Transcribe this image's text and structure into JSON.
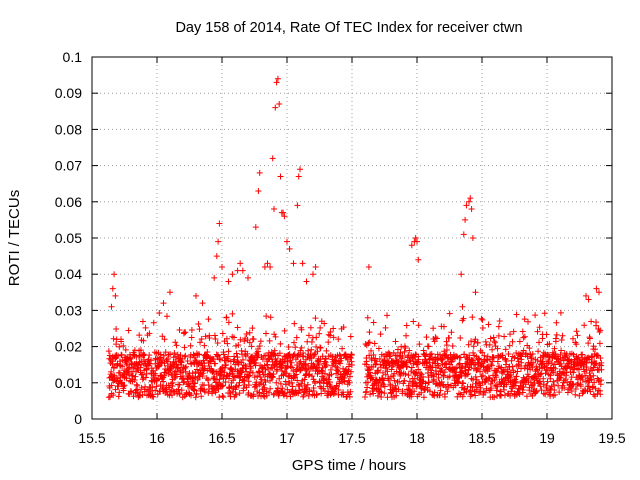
{
  "chart_data": {
    "type": "scatter",
    "title": "Day 158 of 2014, Rate Of TEC Index for receiver ctwn",
    "xlabel": "GPS time / hours",
    "ylabel": "ROTI / TECUs",
    "xlim": [
      15.5,
      19.5
    ],
    "ylim": [
      0,
      0.1
    ],
    "xticks": [
      "15.5",
      "16",
      "16.5",
      "17",
      "17.5",
      "18",
      "18.5",
      "19",
      "19.5"
    ],
    "yticks": [
      "0",
      "0.01",
      "0.02",
      "0.03",
      "0.04",
      "0.05",
      "0.06",
      "0.07",
      "0.08",
      "0.09",
      "0.1"
    ],
    "grid": true,
    "marker": "plus",
    "color": "#ff0000",
    "data_gap": [
      17.5,
      17.6
    ],
    "series": [
      {
        "name": "ROTI",
        "points": [
          [
            15.65,
            0.031
          ],
          [
            15.66,
            0.036
          ],
          [
            15.67,
            0.04
          ],
          [
            15.68,
            0.034
          ],
          [
            15.69,
            0.022
          ],
          [
            16.05,
            0.032
          ],
          [
            16.1,
            0.035
          ],
          [
            16.3,
            0.034
          ],
          [
            16.35,
            0.032
          ],
          [
            16.44,
            0.039
          ],
          [
            16.46,
            0.045
          ],
          [
            16.47,
            0.049
          ],
          [
            16.48,
            0.054
          ],
          [
            16.5,
            0.042
          ],
          [
            16.55,
            0.038
          ],
          [
            16.58,
            0.04
          ],
          [
            16.62,
            0.041
          ],
          [
            16.64,
            0.043
          ],
          [
            16.66,
            0.041
          ],
          [
            16.7,
            0.039
          ],
          [
            16.76,
            0.053
          ],
          [
            16.78,
            0.063
          ],
          [
            16.79,
            0.068
          ],
          [
            16.83,
            0.042
          ],
          [
            16.85,
            0.043
          ],
          [
            16.87,
            0.042
          ],
          [
            16.89,
            0.072
          ],
          [
            16.9,
            0.058
          ],
          [
            16.91,
            0.086
          ],
          [
            16.92,
            0.093
          ],
          [
            16.93,
            0.094
          ],
          [
            16.94,
            0.087
          ],
          [
            16.95,
            0.067
          ],
          [
            16.96,
            0.057
          ],
          [
            16.97,
            0.057
          ],
          [
            16.98,
            0.056
          ],
          [
            17.0,
            0.049
          ],
          [
            17.02,
            0.047
          ],
          [
            17.05,
            0.043
          ],
          [
            17.08,
            0.059
          ],
          [
            17.09,
            0.067
          ],
          [
            17.1,
            0.069
          ],
          [
            17.12,
            0.043
          ],
          [
            17.15,
            0.038
          ],
          [
            17.2,
            0.04
          ],
          [
            17.22,
            0.042
          ],
          [
            17.63,
            0.042
          ],
          [
            17.96,
            0.048
          ],
          [
            17.98,
            0.049
          ],
          [
            17.99,
            0.05
          ],
          [
            18.0,
            0.049
          ],
          [
            18.01,
            0.044
          ],
          [
            18.34,
            0.04
          ],
          [
            18.36,
            0.051
          ],
          [
            18.37,
            0.055
          ],
          [
            18.38,
            0.059
          ],
          [
            18.4,
            0.06
          ],
          [
            18.41,
            0.061
          ],
          [
            18.42,
            0.058
          ],
          [
            18.43,
            0.05
          ],
          [
            18.45,
            0.035
          ],
          [
            18.35,
            0.031
          ],
          [
            19.3,
            0.034
          ],
          [
            19.32,
            0.033
          ],
          [
            19.38,
            0.036
          ],
          [
            19.4,
            0.035
          ]
        ]
      }
    ]
  }
}
